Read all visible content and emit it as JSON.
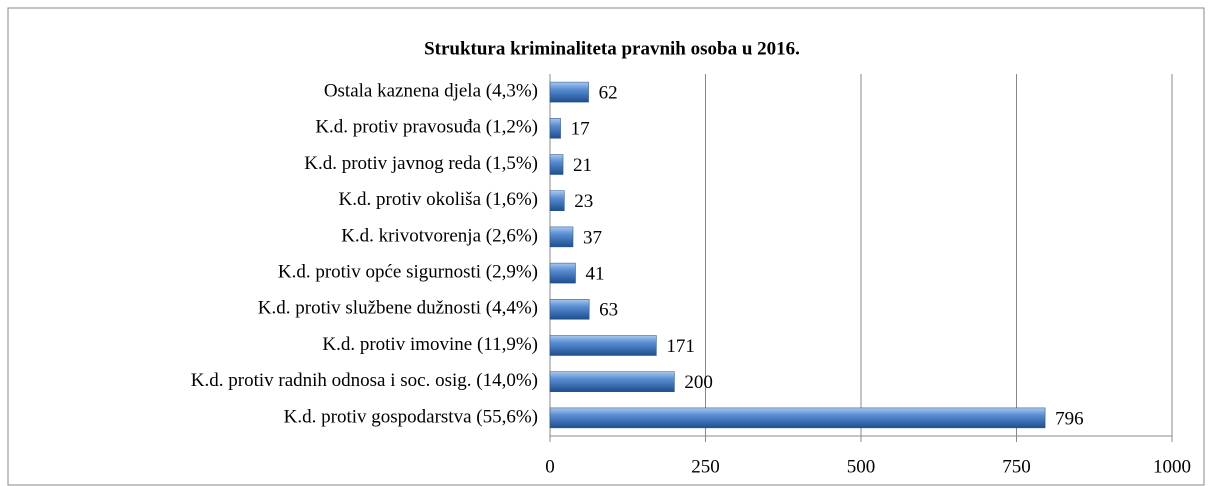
{
  "chart_data": {
    "type": "bar",
    "orientation": "horizontal",
    "title": "Struktura kriminaliteta pravnih osoba u 2016.",
    "categories": [
      "Ostala kaznena djela (4,3%)",
      "K.d. protiv pravosuđa (1,2%)",
      "K.d. protiv javnog reda (1,5%)",
      "K.d. protiv okoliša (1,6%)",
      "K.d. krivotvorenja (2,6%)",
      "K.d. protiv opće sigurnosti (2,9%)",
      "K.d. protiv službene dužnosti (4,4%)",
      "K.d. protiv imovine (11,9%)",
      "K.d. protiv radnih odnosa i soc. osig. (14,0%)",
      "K.d. protiv gospodarstva (55,6%)"
    ],
    "values": [
      62,
      17,
      21,
      23,
      37,
      41,
      63,
      171,
      200,
      796
    ],
    "color": "#3a75c4",
    "xlim": [
      0,
      1000
    ],
    "xticks": [
      0,
      250,
      500,
      750,
      1000
    ],
    "grid": true
  }
}
